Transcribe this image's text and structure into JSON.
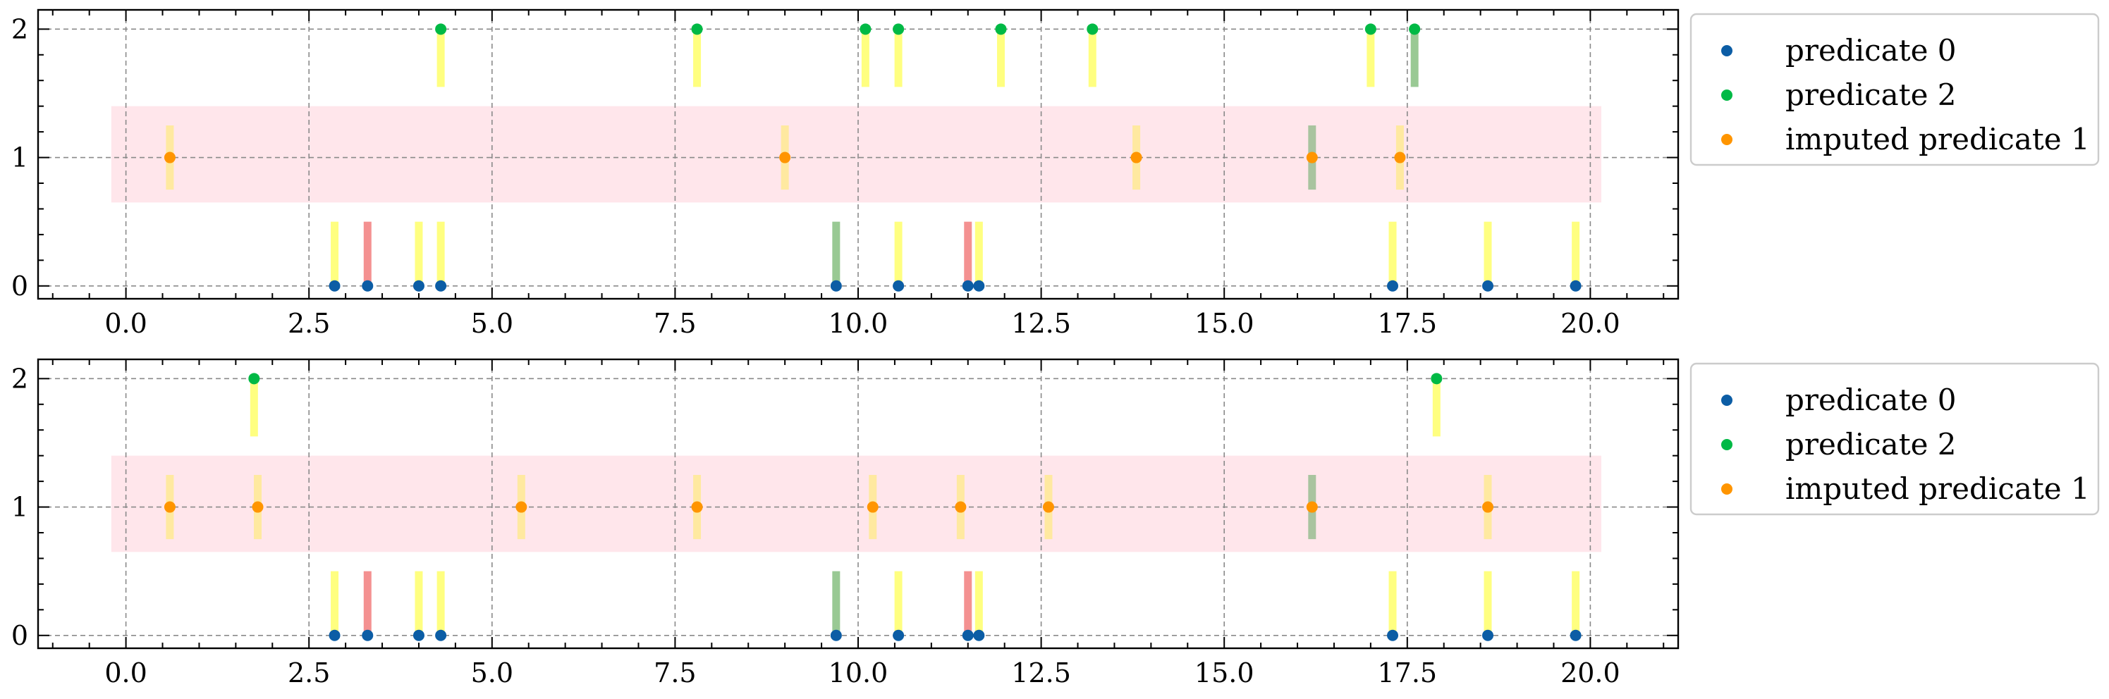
{
  "chart_data": [
    {
      "type": "scatter",
      "xlim": [
        -1.2,
        21.2
      ],
      "ylim": [
        -0.1,
        2.15
      ],
      "xticks": [
        0.0,
        2.5,
        5.0,
        7.5,
        10.0,
        12.5,
        15.0,
        17.5,
        20.0
      ],
      "xtick_labels": [
        "0.0",
        "2.5",
        "5.0",
        "7.5",
        "10.0",
        "12.5",
        "15.0",
        "17.5",
        "20.0"
      ],
      "yticks": [
        0,
        1,
        2
      ],
      "ytick_labels": [
        "0",
        "1",
        "2"
      ],
      "grid": true,
      "legend_position": "outside-right-top",
      "imputation_band": {
        "x": [
          -0.2,
          20.15
        ],
        "y": [
          0.65,
          1.4
        ],
        "color": "#ffe6eb"
      },
      "series": [
        {
          "name": "predicate 0",
          "color": "#0c5da5",
          "x": [
            2.85,
            3.3,
            4.0,
            4.3,
            9.7,
            10.55,
            11.5,
            11.65,
            17.3,
            18.6,
            19.8
          ],
          "y": [
            0,
            0,
            0,
            0,
            0,
            0,
            0,
            0,
            0,
            0,
            0
          ]
        },
        {
          "name": "predicate 2",
          "color": "#00b945",
          "x": [
            4.3,
            7.8,
            10.1,
            10.55,
            11.95,
            13.2,
            17.0,
            17.6
          ],
          "y": [
            2,
            2,
            2,
            2,
            2,
            2,
            2,
            2
          ]
        },
        {
          "name": "imputed predicate 1",
          "color": "#ff9500",
          "x": [
            0.6,
            9.0,
            13.8,
            16.2,
            17.4
          ],
          "y": [
            1,
            1,
            1,
            1,
            1
          ]
        }
      ],
      "markers": [
        {
          "x": 2.85,
          "y": 0,
          "color": "#ffff80"
        },
        {
          "x": 3.3,
          "y": 0,
          "color": "#f49191"
        },
        {
          "x": 4.0,
          "y": 0,
          "color": "#ffff80"
        },
        {
          "x": 4.3,
          "y": 0,
          "color": "#ffff80"
        },
        {
          "x": 9.7,
          "y": 0,
          "color": "#99c994"
        },
        {
          "x": 10.55,
          "y": 0,
          "color": "#ffff80"
        },
        {
          "x": 11.5,
          "y": 0,
          "color": "#f49191"
        },
        {
          "x": 11.65,
          "y": 0,
          "color": "#ffff80"
        },
        {
          "x": 17.3,
          "y": 0,
          "color": "#ffff80"
        },
        {
          "x": 18.6,
          "y": 0,
          "color": "#ffff80"
        },
        {
          "x": 19.8,
          "y": 0,
          "color": "#ffff80"
        },
        {
          "x": 4.3,
          "y": 2,
          "color": "#ffff80"
        },
        {
          "x": 7.8,
          "y": 2,
          "color": "#ffff80"
        },
        {
          "x": 10.1,
          "y": 2,
          "color": "#ffff80"
        },
        {
          "x": 10.55,
          "y": 2,
          "color": "#ffff80"
        },
        {
          "x": 11.95,
          "y": 2,
          "color": "#ffff80"
        },
        {
          "x": 13.2,
          "y": 2,
          "color": "#ffff80"
        },
        {
          "x": 17.0,
          "y": 2,
          "color": "#ffff80"
        },
        {
          "x": 17.6,
          "y": 2,
          "color": "#99c994"
        },
        {
          "x": 0.6,
          "y": 1,
          "color": "#ffe9a0"
        },
        {
          "x": 9.0,
          "y": 1,
          "color": "#ffe9a0"
        },
        {
          "x": 13.8,
          "y": 1,
          "color": "#ffe9a0"
        },
        {
          "x": 16.2,
          "y": 1,
          "color": "#a9c49f"
        },
        {
          "x": 17.4,
          "y": 1,
          "color": "#ffe9a0"
        }
      ]
    },
    {
      "type": "scatter",
      "xlim": [
        -1.2,
        21.2
      ],
      "ylim": [
        -0.1,
        2.15
      ],
      "xticks": [
        0.0,
        2.5,
        5.0,
        7.5,
        10.0,
        12.5,
        15.0,
        17.5,
        20.0
      ],
      "xtick_labels": [
        "0.0",
        "2.5",
        "5.0",
        "7.5",
        "10.0",
        "12.5",
        "15.0",
        "17.5",
        "20.0"
      ],
      "yticks": [
        0,
        1,
        2
      ],
      "ytick_labels": [
        "0",
        "1",
        "2"
      ],
      "grid": true,
      "legend_position": "outside-right-top",
      "imputation_band": {
        "x": [
          -0.2,
          20.15
        ],
        "y": [
          0.65,
          1.4
        ],
        "color": "#ffe6eb"
      },
      "series": [
        {
          "name": "predicate 0",
          "color": "#0c5da5",
          "x": [
            2.85,
            3.3,
            4.0,
            4.3,
            9.7,
            10.55,
            11.5,
            11.65,
            17.3,
            18.6,
            19.8
          ],
          "y": [
            0,
            0,
            0,
            0,
            0,
            0,
            0,
            0,
            0,
            0,
            0
          ]
        },
        {
          "name": "predicate 2",
          "color": "#00b945",
          "x": [
            1.75,
            17.9
          ],
          "y": [
            2,
            2
          ]
        },
        {
          "name": "imputed predicate 1",
          "color": "#ff9500",
          "x": [
            0.6,
            1.8,
            5.4,
            7.8,
            10.2,
            11.4,
            12.6,
            16.2,
            18.6
          ],
          "y": [
            1,
            1,
            1,
            1,
            1,
            1,
            1,
            1,
            1
          ]
        }
      ],
      "markers": [
        {
          "x": 2.85,
          "y": 0,
          "color": "#ffff80"
        },
        {
          "x": 3.3,
          "y": 0,
          "color": "#f49191"
        },
        {
          "x": 4.0,
          "y": 0,
          "color": "#ffff80"
        },
        {
          "x": 4.3,
          "y": 0,
          "color": "#ffff80"
        },
        {
          "x": 9.7,
          "y": 0,
          "color": "#99c994"
        },
        {
          "x": 10.55,
          "y": 0,
          "color": "#ffff80"
        },
        {
          "x": 11.5,
          "y": 0,
          "color": "#f49191"
        },
        {
          "x": 11.65,
          "y": 0,
          "color": "#ffff80"
        },
        {
          "x": 17.3,
          "y": 0,
          "color": "#ffff80"
        },
        {
          "x": 18.6,
          "y": 0,
          "color": "#ffff80"
        },
        {
          "x": 19.8,
          "y": 0,
          "color": "#ffff80"
        },
        {
          "x": 1.75,
          "y": 2,
          "color": "#ffff80"
        },
        {
          "x": 17.9,
          "y": 2,
          "color": "#ffff80"
        },
        {
          "x": 0.6,
          "y": 1,
          "color": "#ffe9a0"
        },
        {
          "x": 1.8,
          "y": 1,
          "color": "#ffe9a0"
        },
        {
          "x": 5.4,
          "y": 1,
          "color": "#ffe9a0"
        },
        {
          "x": 7.8,
          "y": 1,
          "color": "#ffe9a0"
        },
        {
          "x": 10.2,
          "y": 1,
          "color": "#ffe9a0"
        },
        {
          "x": 11.4,
          "y": 1,
          "color": "#ffe9a0"
        },
        {
          "x": 12.6,
          "y": 1,
          "color": "#ffe9a0"
        },
        {
          "x": 16.2,
          "y": 1,
          "color": "#a9c49f"
        },
        {
          "x": 18.6,
          "y": 1,
          "color": "#ffe9a0"
        }
      ]
    }
  ]
}
